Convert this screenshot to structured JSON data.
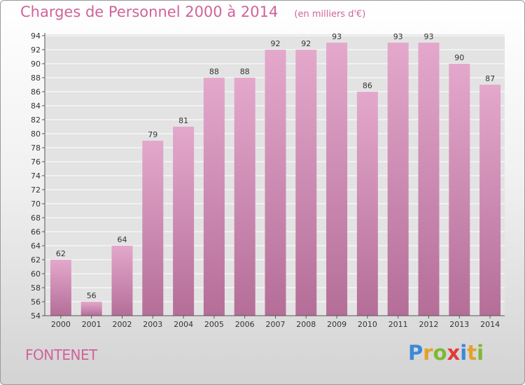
{
  "header": {
    "title": "Charges de Personnel 2000 à 2014",
    "unit_note": "(en milliers d'€)"
  },
  "footer": {
    "commune": "FONTENET",
    "brand_letters": [
      {
        "ch": "P",
        "color": "#3a8ad8"
      },
      {
        "ch": "r",
        "color": "#e2a12a"
      },
      {
        "ch": "o",
        "color": "#7fb834"
      },
      {
        "ch": "x",
        "color": "#e23a3a"
      },
      {
        "ch": "i",
        "color": "#3a8ad8"
      },
      {
        "ch": "t",
        "color": "#e2a12a"
      },
      {
        "ch": "i",
        "color": "#7fb834"
      }
    ]
  },
  "colors": {
    "accent": "#d0639a",
    "bar_top": "#e4a8cc",
    "bar_bottom": "#b46e98",
    "grid": "#ffffff",
    "axis_text": "#333333"
  },
  "chart_data": {
    "type": "bar",
    "title": "Charges de Personnel 2000 à 2014",
    "subtitle": "(en milliers d'€)",
    "xlabel": "",
    "ylabel": "",
    "categories": [
      "2000",
      "2001",
      "2002",
      "2003",
      "2004",
      "2005",
      "2006",
      "2007",
      "2008",
      "2009",
      "2010",
      "2011",
      "2012",
      "2013",
      "2014"
    ],
    "values": [
      62,
      56,
      64,
      79,
      81,
      88,
      88,
      92,
      92,
      93,
      86,
      93,
      93,
      90,
      87
    ],
    "ylim": [
      54,
      94
    ],
    "ytick_step": 2,
    "grid": true,
    "legend": "none"
  }
}
